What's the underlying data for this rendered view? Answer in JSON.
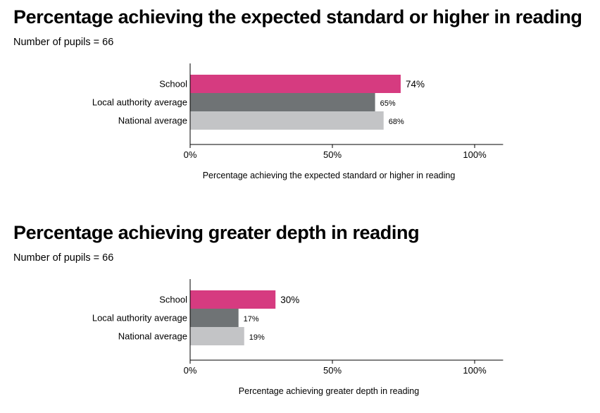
{
  "chart_data": [
    {
      "type": "bar",
      "orientation": "horizontal",
      "title": "Percentage achieving the expected standard or higher in reading",
      "subtitle": "Number of pupils = 66",
      "categories": [
        "School",
        "Local authority average",
        "National average"
      ],
      "values": [
        74,
        65,
        68
      ],
      "value_labels": [
        "74%",
        "65%",
        "68%"
      ],
      "colors": [
        "#d63b80",
        "#6f7375",
        "#c3c4c6"
      ],
      "xlim": [
        0,
        110
      ],
      "ticks": [
        0,
        50,
        100
      ],
      "tick_labels": [
        "0%",
        "50%",
        "100%"
      ],
      "xlabel": "Percentage achieving the expected standard or higher in reading",
      "ylabel": "",
      "grid": false
    },
    {
      "type": "bar",
      "orientation": "horizontal",
      "title": "Percentage achieving greater depth in reading",
      "subtitle": "Number of pupils = 66",
      "categories": [
        "School",
        "Local authority average",
        "National average"
      ],
      "values": [
        30,
        17,
        19
      ],
      "value_labels": [
        "30%",
        "17%",
        "19%"
      ],
      "colors": [
        "#d63b80",
        "#6f7375",
        "#c3c4c6"
      ],
      "xlim": [
        0,
        110
      ],
      "ticks": [
        0,
        50,
        100
      ],
      "tick_labels": [
        "0%",
        "50%",
        "100%"
      ],
      "xlabel": "Percentage achieving greater depth in reading",
      "ylabel": "",
      "grid": false
    }
  ]
}
